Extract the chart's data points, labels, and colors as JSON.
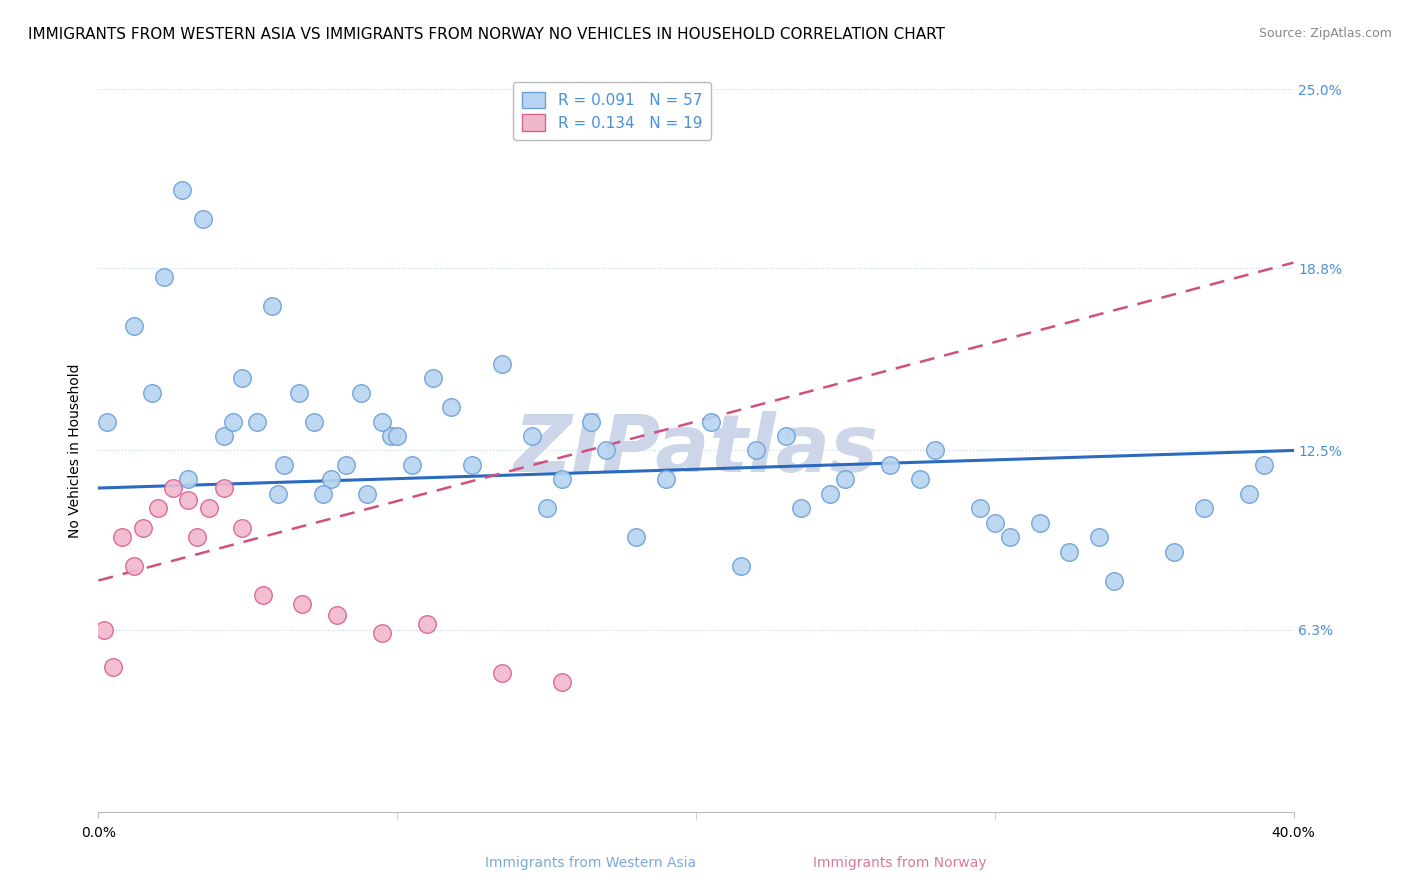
{
  "title": "IMMIGRANTS FROM WESTERN ASIA VS IMMIGRANTS FROM NORWAY NO VEHICLES IN HOUSEHOLD CORRELATION CHART",
  "source": "Source: ZipAtlas.com",
  "ylabel": "No Vehicles in Household",
  "xlim": [
    0.0,
    40.0
  ],
  "ylim": [
    0.0,
    25.0
  ],
  "yticks": [
    6.3,
    12.5,
    18.8,
    25.0
  ],
  "ytick_labels": [
    "6.3%",
    "12.5%",
    "18.8%",
    "25.0%"
  ],
  "xticks": [
    0.0,
    40.0
  ],
  "xtick_labels": [
    "0.0%",
    "40.0%"
  ],
  "watermark": "ZIPatlas",
  "western_asia_x": [
    0.3,
    1.2,
    1.8,
    2.2,
    2.8,
    3.5,
    4.2,
    4.8,
    5.3,
    6.0,
    6.7,
    7.2,
    7.8,
    8.3,
    9.0,
    9.8,
    10.5,
    11.2,
    11.8,
    13.5,
    15.5,
    17.0,
    19.0,
    20.5,
    22.0,
    23.5,
    25.0,
    26.5,
    28.0,
    29.5,
    30.5,
    31.5,
    32.5,
    34.0,
    36.0,
    38.5,
    3.0,
    5.8,
    8.8,
    14.5,
    24.5,
    27.5,
    30.0,
    33.5,
    37.0,
    6.2,
    7.5,
    9.5,
    21.5,
    15.0,
    18.0,
    12.5,
    4.5,
    10.0,
    16.5,
    23.0,
    39.0
  ],
  "western_asia_y": [
    13.5,
    16.8,
    14.5,
    18.5,
    21.5,
    20.5,
    13.0,
    15.0,
    13.5,
    11.0,
    14.5,
    13.5,
    11.5,
    12.0,
    11.0,
    13.0,
    12.0,
    15.0,
    14.0,
    15.5,
    11.5,
    12.5,
    11.5,
    13.5,
    12.5,
    10.5,
    11.5,
    12.0,
    12.5,
    10.5,
    9.5,
    10.0,
    9.0,
    8.0,
    9.0,
    11.0,
    11.5,
    17.5,
    14.5,
    13.0,
    11.0,
    11.5,
    10.0,
    9.5,
    10.5,
    12.0,
    11.0,
    13.5,
    8.5,
    10.5,
    9.5,
    12.0,
    13.5,
    13.0,
    13.5,
    13.0,
    12.0
  ],
  "norway_x": [
    0.2,
    0.5,
    0.8,
    1.2,
    1.5,
    2.0,
    2.5,
    3.0,
    3.3,
    3.7,
    4.2,
    4.8,
    5.5,
    6.8,
    8.0,
    9.5,
    11.0,
    13.5,
    15.5
  ],
  "norway_y": [
    6.3,
    5.0,
    9.5,
    8.5,
    9.8,
    10.5,
    11.2,
    10.8,
    9.5,
    10.5,
    11.2,
    9.8,
    7.5,
    7.2,
    6.8,
    6.2,
    6.5,
    4.8,
    4.5
  ],
  "wa_trendline_x0": 0.0,
  "wa_trendline_y0": 11.2,
  "wa_trendline_x1": 40.0,
  "wa_trendline_y1": 12.5,
  "nor_trendline_x0": 0.0,
  "nor_trendline_y0": 8.0,
  "nor_trendline_x1": 40.0,
  "nor_trendline_y1": 19.0,
  "scatter_color_wa": "#b8d4f0",
  "scatter_color_nor": "#f0b8cc",
  "scatter_edge_wa": "#6a9fd8",
  "scatter_edge_nor": "#d86090",
  "trendline_color_wa": "#2b6abf",
  "trendline_color_nor": "#d05080",
  "background_color": "#ffffff",
  "grid_color": "#c8d4e8",
  "title_fontsize": 11,
  "source_fontsize": 9,
  "ylabel_fontsize": 10,
  "tick_fontsize": 10,
  "legend_fontsize": 11,
  "watermark_color": "#ccd6e8",
  "watermark_fontsize": 58,
  "right_tick_color": "#4a90d9"
}
